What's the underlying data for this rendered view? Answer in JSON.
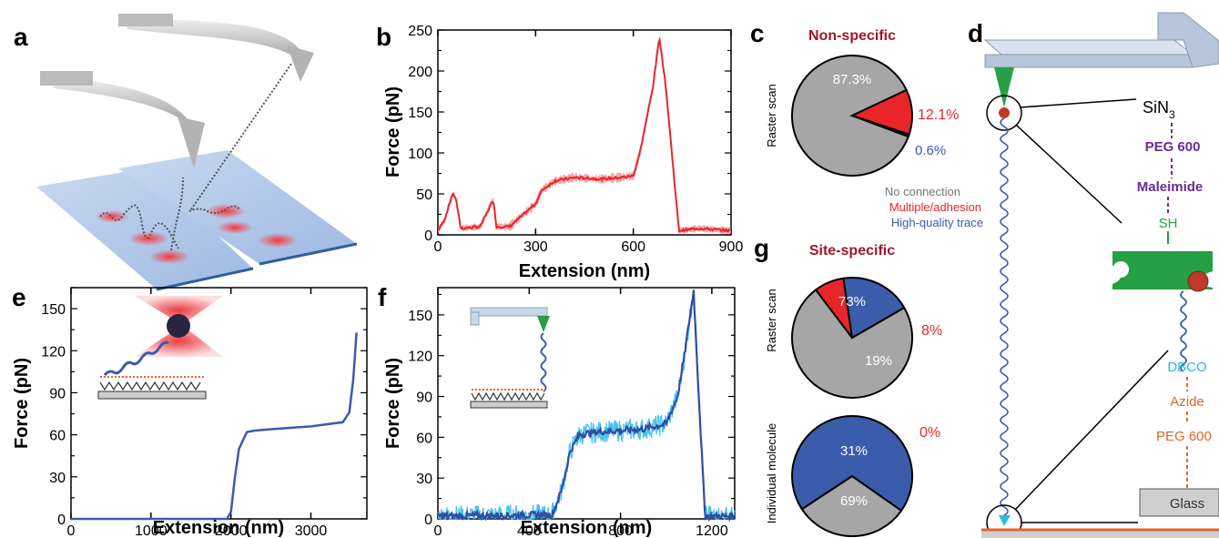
{
  "panels": {
    "a": {
      "letter": "a"
    },
    "b": {
      "letter": "b"
    },
    "c": {
      "letter": "c",
      "title": "Non-specific",
      "ylabel": "Raster scan",
      "legend": [
        "No connection",
        "Multiple/adhesion",
        "High-quality trace"
      ]
    },
    "d": {
      "letter": "d",
      "labels": [
        "SiN",
        "3",
        "PEG 600",
        "Maleimide",
        "SH",
        "DBCO",
        "Azide",
        "PEG 600",
        "Glass"
      ]
    },
    "e": {
      "letter": "e"
    },
    "f": {
      "letter": "f"
    },
    "g": {
      "letter": "g",
      "title": "Site-specific",
      "ylabel_top": "Raster scan",
      "ylabel_bottom": "Individual molecule"
    }
  },
  "colors": {
    "red": "#e8262a",
    "blue": "#3b5bab",
    "gray": "#a6a6a6",
    "darkred": "#a0182a",
    "purple": "#6a2c91",
    "green": "#25a045",
    "cyan": "#31b6e7",
    "orange": "#e0662a",
    "cantilever": "#c9d6e8"
  },
  "chart_data": [
    {
      "panel": "b",
      "type": "line",
      "xlabel": "Extension (nm)",
      "ylabel": "Force (pN)",
      "xlim": [
        0,
        900
      ],
      "ylim": [
        0,
        250
      ],
      "xticks": [
        0,
        300,
        600,
        900
      ],
      "yticks": [
        0,
        50,
        100,
        150,
        200,
        250
      ],
      "series": [
        {
          "color": "#e8262a",
          "x": [
            0,
            20,
            45,
            55,
            70,
            130,
            170,
            180,
            220,
            300,
            320,
            360,
            420,
            500,
            560,
            600,
            620,
            660,
            680,
            700,
            740,
            800,
            900
          ],
          "y": [
            5,
            18,
            50,
            45,
            8,
            10,
            43,
            10,
            10,
            38,
            55,
            66,
            70,
            68,
            70,
            72,
            100,
            180,
            242,
            180,
            5,
            8,
            5
          ]
        }
      ]
    },
    {
      "panel": "c",
      "type": "pie",
      "labels": [
        "87.3%",
        "12.1%",
        "0.6%"
      ],
      "slices": [
        {
          "value": 87.3,
          "color": "#a6a6a6"
        },
        {
          "value": 12.1,
          "color": "#e8262a"
        },
        {
          "value": 0.6,
          "color": "#3b5bab"
        }
      ]
    },
    {
      "panel": "e",
      "type": "line",
      "xlabel": "Extension (nm)",
      "ylabel": "Force (pN)",
      "xlim": [
        0,
        3700
      ],
      "ylim": [
        0,
        165
      ],
      "xticks": [
        0,
        1000,
        2000,
        3000
      ],
      "yticks": [
        0,
        30,
        60,
        90,
        120,
        150
      ],
      "series": [
        {
          "color": "#3b5bab",
          "x": [
            0,
            1950,
            2000,
            2050,
            2100,
            2200,
            2300,
            2500,
            3000,
            3400,
            3480,
            3530,
            3570
          ],
          "y": [
            0,
            0,
            5,
            30,
            50,
            62,
            63,
            64,
            66,
            69,
            76,
            100,
            133
          ]
        }
      ]
    },
    {
      "panel": "f",
      "type": "line",
      "xlabel": "Extension (nm)",
      "ylabel": "Force (pN)",
      "xlim": [
        0,
        1300
      ],
      "ylim": [
        0,
        170
      ],
      "xticks": [
        0,
        400,
        800,
        1200
      ],
      "yticks": [
        0,
        30,
        60,
        90,
        120,
        150
      ],
      "series": [
        {
          "color": "#2f4ea3",
          "x": [
            0,
            500,
            540,
            580,
            620,
            700,
            800,
            900,
            1000,
            1050,
            1080,
            1120,
            1140,
            1170,
            1200,
            1300
          ],
          "y": [
            2,
            3,
            20,
            50,
            62,
            64,
            65,
            66,
            70,
            90,
            120,
            168,
            100,
            2,
            2,
            2
          ]
        }
      ]
    },
    {
      "panel": "g-top",
      "type": "pie",
      "labels": [
        "73%",
        "8%",
        "19%"
      ],
      "slices": [
        {
          "value": 73,
          "color": "#a6a6a6"
        },
        {
          "value": 8,
          "color": "#e8262a"
        },
        {
          "value": 19,
          "color": "#3b5bab"
        }
      ]
    },
    {
      "panel": "g-bottom",
      "type": "pie",
      "labels": [
        "31%",
        "0%",
        "69%"
      ],
      "slices": [
        {
          "value": 31,
          "color": "#a6a6a6"
        },
        {
          "value": 0,
          "color": "#e8262a"
        },
        {
          "value": 69,
          "color": "#3b5bab"
        }
      ]
    }
  ]
}
